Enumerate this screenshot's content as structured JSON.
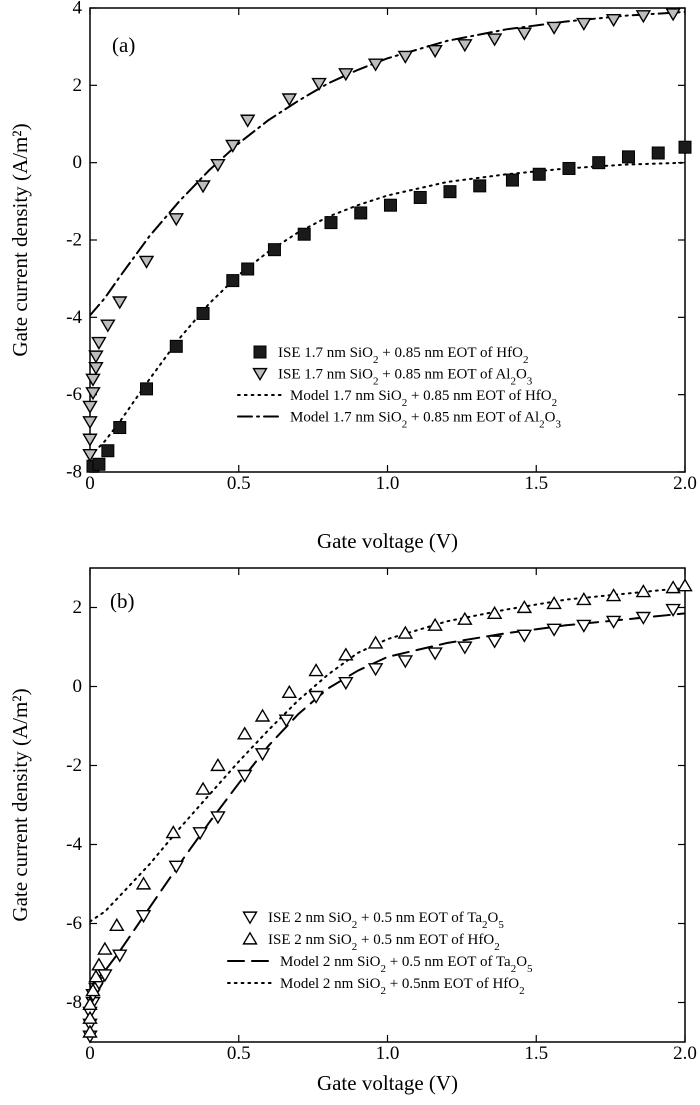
{
  "chart_data": [
    {
      "type": "scatter",
      "panel_label": "(a)",
      "xlabel": "Gate voltage (V)",
      "ylabel": "Gate current density (A/m²)",
      "xlim": [
        0,
        2.0
      ],
      "ylim": [
        -8,
        4
      ],
      "xticks": [
        "0",
        "0.5",
        "1.0",
        "1.5",
        "2.0"
      ],
      "yticks": [
        "-8",
        "-6",
        "-4",
        "-2",
        "0",
        "2",
        "4"
      ],
      "grid": false,
      "legend_position": "bottom-right",
      "series": [
        {
          "kind": "markers",
          "marker": "square-filled",
          "legend_parts": [
            [
              "ISE 1.7 nm SiO",
              ""
            ],
            [
              "2",
              "sub"
            ],
            [
              " + 0.85 nm EOT of HfO",
              ""
            ],
            [
              "2",
              "sub"
            ]
          ],
          "x": [
            0.01,
            0.03,
            0.06,
            0.1,
            0.19,
            0.29,
            0.38,
            0.48,
            0.53,
            0.62,
            0.72,
            0.81,
            0.91,
            1.01,
            1.11,
            1.21,
            1.31,
            1.42,
            1.51,
            1.61,
            1.71,
            1.81,
            1.91,
            2.0
          ],
          "y": [
            -7.85,
            -7.8,
            -7.45,
            -6.85,
            -5.85,
            -4.75,
            -3.9,
            -3.05,
            -2.75,
            -2.25,
            -1.85,
            -1.55,
            -1.3,
            -1.1,
            -0.9,
            -0.75,
            -0.6,
            -0.45,
            -0.3,
            -0.15,
            0.0,
            0.15,
            0.25,
            0.4
          ]
        },
        {
          "kind": "markers",
          "marker": "triangle-down",
          "legend_parts": [
            [
              "ISE 1.7 nm SiO",
              ""
            ],
            [
              "2",
              "sub"
            ],
            [
              " + 0.85 nm EOT of Al",
              ""
            ],
            [
              "2",
              "sub"
            ],
            [
              "O",
              ""
            ],
            [
              "3",
              "sub"
            ]
          ],
          "x": [
            0.0,
            0.0,
            0.0,
            0.0,
            0.01,
            0.01,
            0.02,
            0.02,
            0.03,
            0.06,
            0.1,
            0.19,
            0.29,
            0.38,
            0.43,
            0.48,
            0.53,
            0.67,
            0.77,
            0.86,
            0.96,
            1.06,
            1.16,
            1.26,
            1.36,
            1.46,
            1.56,
            1.66,
            1.76,
            1.86,
            1.96
          ],
          "y": [
            -7.55,
            -7.15,
            -6.7,
            -6.3,
            -5.95,
            -5.6,
            -5.3,
            -5.0,
            -4.65,
            -4.2,
            -3.6,
            -2.55,
            -1.45,
            -0.6,
            -0.05,
            0.45,
            1.1,
            1.65,
            2.05,
            2.3,
            2.55,
            2.75,
            2.9,
            3.05,
            3.2,
            3.35,
            3.5,
            3.6,
            3.7,
            3.8,
            3.85
          ]
        },
        {
          "kind": "line",
          "dash": "dotted",
          "legend_parts": [
            [
              "Model 1.7 nm SiO",
              ""
            ],
            [
              "2",
              "sub"
            ],
            [
              " + 0.85 nm EOT of HfO",
              ""
            ],
            [
              "2",
              "sub"
            ]
          ],
          "x": [
            0.0,
            0.05,
            0.1,
            0.2,
            0.3,
            0.4,
            0.5,
            0.6,
            0.7,
            0.8,
            0.9,
            1.0,
            1.2,
            1.4,
            1.6,
            1.8,
            2.0
          ],
          "y": [
            -7.6,
            -7.2,
            -6.7,
            -5.6,
            -4.55,
            -3.65,
            -2.9,
            -2.3,
            -1.8,
            -1.4,
            -1.1,
            -0.85,
            -0.5,
            -0.3,
            -0.15,
            -0.05,
            0.0
          ]
        },
        {
          "kind": "line",
          "dash": "dash-dot",
          "legend_parts": [
            [
              "Model 1.7 nm SiO",
              ""
            ],
            [
              "2",
              "sub"
            ],
            [
              " + 0.85 nm EOT of Al",
              ""
            ],
            [
              "2",
              "sub"
            ],
            [
              "O",
              ""
            ],
            [
              "3",
              "sub"
            ]
          ],
          "x": [
            0.0,
            0.05,
            0.1,
            0.2,
            0.3,
            0.4,
            0.5,
            0.6,
            0.7,
            0.8,
            0.9,
            1.0,
            1.2,
            1.4,
            1.6,
            1.8,
            2.0
          ],
          "y": [
            -3.95,
            -3.5,
            -2.95,
            -1.9,
            -1.0,
            -0.2,
            0.5,
            1.1,
            1.6,
            2.05,
            2.4,
            2.7,
            3.15,
            3.45,
            3.65,
            3.8,
            3.9
          ]
        }
      ]
    },
    {
      "type": "scatter",
      "panel_label": "(b)",
      "xlabel": "Gate voltage (V)",
      "ylabel": "Gate current density (A/m²)",
      "xlim": [
        0,
        2.0
      ],
      "ylim": [
        -9,
        3
      ],
      "xticks": [
        "0",
        "0.5",
        "1.0",
        "1.5",
        "2.0"
      ],
      "yticks": [
        "-8",
        "-6",
        "-4",
        "-2",
        "0",
        "2"
      ],
      "grid": false,
      "legend_position": "bottom-right",
      "series": [
        {
          "kind": "markers",
          "marker": "triangle-down",
          "legend_parts": [
            [
              "ISE 2 nm SiO",
              ""
            ],
            [
              "2",
              "sub"
            ],
            [
              " + 0.5 nm EOT of Ta",
              ""
            ],
            [
              "2",
              "sub"
            ],
            [
              "O",
              ""
            ],
            [
              "5",
              "sub"
            ]
          ],
          "x": [
            0.0,
            0.0,
            0.0,
            0.01,
            0.01,
            0.02,
            0.03,
            0.05,
            0.1,
            0.18,
            0.29,
            0.37,
            0.43,
            0.52,
            0.58,
            0.66,
            0.76,
            0.86,
            0.96,
            1.06,
            1.16,
            1.26,
            1.36,
            1.46,
            1.56,
            1.66,
            1.76,
            1.86,
            1.96
          ],
          "y": [
            -8.85,
            -8.55,
            -8.25,
            -8.0,
            -7.8,
            -7.65,
            -7.5,
            -7.3,
            -6.8,
            -5.8,
            -4.55,
            -3.7,
            -3.3,
            -2.25,
            -1.7,
            -0.85,
            -0.25,
            0.1,
            0.45,
            0.65,
            0.85,
            1.0,
            1.15,
            1.3,
            1.45,
            1.55,
            1.65,
            1.75,
            1.95
          ]
        },
        {
          "kind": "markers",
          "marker": "triangle-up",
          "legend_parts": [
            [
              "ISE 2 nm SiO",
              ""
            ],
            [
              "2",
              "sub"
            ],
            [
              " + 0.5 nm  EOT of HfO",
              ""
            ],
            [
              "2",
              "sub"
            ]
          ],
          "x": [
            0.0,
            0.0,
            0.0,
            0.01,
            0.02,
            0.03,
            0.05,
            0.09,
            0.18,
            0.28,
            0.38,
            0.43,
            0.52,
            0.58,
            0.67,
            0.76,
            0.86,
            0.96,
            1.06,
            1.16,
            1.26,
            1.36,
            1.46,
            1.56,
            1.66,
            1.76,
            1.86,
            1.96,
            2.0
          ],
          "y": [
            -8.75,
            -8.4,
            -8.05,
            -7.7,
            -7.35,
            -7.05,
            -6.65,
            -6.05,
            -5.0,
            -3.7,
            -2.6,
            -2.0,
            -1.2,
            -0.75,
            -0.15,
            0.4,
            0.8,
            1.1,
            1.35,
            1.55,
            1.7,
            1.85,
            2.0,
            2.1,
            2.2,
            2.3,
            2.4,
            2.5,
            2.55
          ]
        },
        {
          "kind": "line",
          "dash": "long-dash",
          "legend_parts": [
            [
              "Model 2 nm SiO",
              ""
            ],
            [
              "2",
              "sub"
            ],
            [
              " + 0.5 nm EOT of Ta",
              ""
            ],
            [
              "2",
              "sub"
            ],
            [
              "O",
              ""
            ],
            [
              "5",
              "sub"
            ]
          ],
          "x": [
            0.0,
            0.05,
            0.1,
            0.2,
            0.3,
            0.4,
            0.5,
            0.6,
            0.7,
            0.8,
            0.9,
            1.0,
            1.2,
            1.4,
            1.6,
            1.8,
            2.0
          ],
          "y": [
            -7.6,
            -7.2,
            -6.7,
            -5.6,
            -4.5,
            -3.45,
            -2.45,
            -1.5,
            -0.7,
            -0.05,
            0.4,
            0.75,
            1.1,
            1.35,
            1.55,
            1.7,
            1.85
          ]
        },
        {
          "kind": "line",
          "dash": "dotted",
          "legend_parts": [
            [
              "Model  2 nm SiO",
              ""
            ],
            [
              "2",
              "sub"
            ],
            [
              " + 0.5nm EOT of HfO",
              ""
            ],
            [
              "2",
              "sub"
            ]
          ],
          "x": [
            0.0,
            0.05,
            0.1,
            0.2,
            0.3,
            0.4,
            0.5,
            0.6,
            0.7,
            0.8,
            0.9,
            1.0,
            1.2,
            1.4,
            1.6,
            1.8,
            2.0
          ],
          "y": [
            -5.95,
            -5.7,
            -5.3,
            -4.5,
            -3.6,
            -2.75,
            -1.9,
            -1.1,
            -0.35,
            0.3,
            0.85,
            1.2,
            1.65,
            1.95,
            2.2,
            2.35,
            2.5
          ]
        }
      ]
    }
  ]
}
